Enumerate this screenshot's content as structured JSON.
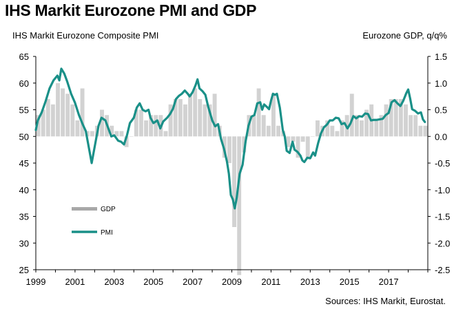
{
  "title": "IHS Markit Eurozone PMI and GDP",
  "source": "Sources: IHS Markit, Eurostat.",
  "colors": {
    "gdp": "#d2d2d2",
    "pmi": "#1a9088",
    "legend_gdp": "#a8a8a8"
  },
  "chart_data": {
    "type": "bar+line",
    "title": "IHS Markit Eurozone PMI and GDP",
    "y_left_label": "IHS Markit Eurozone Composite PMI",
    "y_right_label": "Eurozone GDP, q/q%",
    "y_left_range": [
      25,
      65
    ],
    "y_left_ticks": [
      25,
      30,
      35,
      40,
      45,
      50,
      55,
      60,
      65
    ],
    "y_right_range": [
      -2.5,
      1.5
    ],
    "y_right_ticks": [
      "-2.5",
      "-2.0",
      "-1.5",
      "-1.0",
      "-0.5",
      "0.0",
      "0.5",
      "1.0",
      "1.5"
    ],
    "x_range": [
      1999.0,
      2019.0
    ],
    "x_ticks": [
      "1999",
      "2001",
      "2003",
      "2005",
      "2007",
      "2009",
      "2011",
      "2013",
      "2015",
      "2017"
    ],
    "legend": [
      "GDP",
      "PMI"
    ],
    "series": [
      {
        "name": "GDP",
        "type": "bar",
        "axis": "right",
        "values": [
          0.4,
          0.5,
          0.7,
          0.6,
          1.0,
          0.9,
          0.8,
          0.6,
          0.3,
          0.9,
          0.1,
          0.1,
          0.2,
          0.5,
          0.4,
          0.2,
          0.1,
          0.1,
          -0.2,
          0.0,
          0.5,
          0.5,
          0.3,
          0.4,
          0.4,
          0.4,
          0.1,
          0.6,
          0.7,
          0.7,
          0.6,
          0.8,
          0.9,
          0.7,
          0.6,
          0.6,
          0.8,
          0.2,
          -0.4,
          -0.5,
          -1.7,
          -2.6,
          -0.3,
          0.4,
          0.4,
          0.9,
          0.4,
          0.2,
          0.8,
          0.2,
          0.1,
          -0.2,
          -0.1,
          -0.4,
          -0.1,
          -0.4,
          0.0,
          0.3,
          0.2,
          0.3,
          0.2,
          0.1,
          0.3,
          0.4,
          0.8,
          0.4,
          0.3,
          0.5,
          0.6,
          0.3,
          0.4,
          0.6,
          0.7,
          0.7,
          0.7,
          0.6,
          0.4,
          0.4,
          0.2,
          0.2
        ]
      },
      {
        "name": "PMI",
        "type": "line",
        "axis": "left",
        "points": [
          [
            1999.0,
            51.2
          ],
          [
            1999.1,
            53.0
          ],
          [
            1999.3,
            54.5
          ],
          [
            1999.5,
            56.6
          ],
          [
            1999.7,
            59.0
          ],
          [
            1999.9,
            60.5
          ],
          [
            2000.1,
            61.4
          ],
          [
            2000.2,
            60.5
          ],
          [
            2000.3,
            62.7
          ],
          [
            2000.45,
            61.8
          ],
          [
            2000.6,
            60.3
          ],
          [
            2000.8,
            58.0
          ],
          [
            2001.0,
            56.3
          ],
          [
            2001.2,
            54.0
          ],
          [
            2001.4,
            52.2
          ],
          [
            2001.55,
            51.0
          ],
          [
            2001.75,
            47.0
          ],
          [
            2001.85,
            45.0
          ],
          [
            2002.05,
            49.0
          ],
          [
            2002.2,
            52.0
          ],
          [
            2002.35,
            53.5
          ],
          [
            2002.55,
            53.0
          ],
          [
            2002.7,
            51.5
          ],
          [
            2002.85,
            50.0
          ],
          [
            2003.0,
            50.2
          ],
          [
            2003.2,
            49.2
          ],
          [
            2003.35,
            49.0
          ],
          [
            2003.5,
            48.5
          ],
          [
            2003.65,
            50.2
          ],
          [
            2003.8,
            52.5
          ],
          [
            2004.0,
            53.5
          ],
          [
            2004.15,
            55.4
          ],
          [
            2004.3,
            56.2
          ],
          [
            2004.45,
            55.0
          ],
          [
            2004.6,
            54.7
          ],
          [
            2004.75,
            55.0
          ],
          [
            2004.85,
            53.5
          ],
          [
            2005.0,
            52.5
          ],
          [
            2005.2,
            53.0
          ],
          [
            2005.35,
            51.5
          ],
          [
            2005.5,
            52.8
          ],
          [
            2005.7,
            53.5
          ],
          [
            2005.85,
            54.2
          ],
          [
            2006.0,
            55.2
          ],
          [
            2006.15,
            57.0
          ],
          [
            2006.3,
            57.6
          ],
          [
            2006.45,
            58.0
          ],
          [
            2006.6,
            58.6
          ],
          [
            2006.75,
            58.0
          ],
          [
            2006.85,
            57.5
          ],
          [
            2007.0,
            58.3
          ],
          [
            2007.15,
            59.6
          ],
          [
            2007.25,
            60.7
          ],
          [
            2007.35,
            59.0
          ],
          [
            2007.5,
            58.5
          ],
          [
            2007.65,
            57.8
          ],
          [
            2007.8,
            55.5
          ],
          [
            2008.0,
            53.0
          ],
          [
            2008.15,
            51.9
          ],
          [
            2008.3,
            52.3
          ],
          [
            2008.45,
            49.5
          ],
          [
            2008.6,
            47.7
          ],
          [
            2008.75,
            45.3
          ],
          [
            2008.85,
            43.0
          ],
          [
            2008.95,
            39.0
          ],
          [
            2009.05,
            38.2
          ],
          [
            2009.15,
            36.5
          ],
          [
            2009.25,
            38.5
          ],
          [
            2009.4,
            43.0
          ],
          [
            2009.55,
            44.7
          ],
          [
            2009.7,
            49.0
          ],
          [
            2009.85,
            52.0
          ],
          [
            2010.0,
            53.7
          ],
          [
            2010.15,
            54.0
          ],
          [
            2010.3,
            56.2
          ],
          [
            2010.45,
            56.4
          ],
          [
            2010.55,
            55.0
          ],
          [
            2010.65,
            56.0
          ],
          [
            2010.8,
            55.5
          ],
          [
            2010.9,
            55.1
          ],
          [
            2011.0,
            56.7
          ],
          [
            2011.1,
            58.0
          ],
          [
            2011.2,
            57.8
          ],
          [
            2011.3,
            58.0
          ],
          [
            2011.45,
            55.4
          ],
          [
            2011.6,
            51.2
          ],
          [
            2011.7,
            50.0
          ],
          [
            2011.8,
            47.3
          ],
          [
            2011.95,
            46.9
          ],
          [
            2012.1,
            49.0
          ],
          [
            2012.2,
            47.5
          ],
          [
            2012.35,
            47.1
          ],
          [
            2012.5,
            46.4
          ],
          [
            2012.6,
            45.5
          ],
          [
            2012.7,
            45.2
          ],
          [
            2012.85,
            46.0
          ],
          [
            2013.0,
            45.9
          ],
          [
            2013.15,
            47.0
          ],
          [
            2013.25,
            46.4
          ],
          [
            2013.4,
            48.7
          ],
          [
            2013.55,
            50.6
          ],
          [
            2013.7,
            51.7
          ],
          [
            2013.85,
            52.2
          ],
          [
            2014.0,
            53.0
          ],
          [
            2014.15,
            53.0
          ],
          [
            2014.3,
            53.5
          ],
          [
            2014.45,
            53.4
          ],
          [
            2014.6,
            52.3
          ],
          [
            2014.75,
            52.5
          ],
          [
            2014.9,
            51.5
          ],
          [
            2015.05,
            52.4
          ],
          [
            2015.2,
            53.8
          ],
          [
            2015.35,
            53.4
          ],
          [
            2015.5,
            53.8
          ],
          [
            2015.65,
            53.7
          ],
          [
            2015.8,
            54.3
          ],
          [
            2015.95,
            54.2
          ],
          [
            2016.1,
            53.0
          ],
          [
            2016.25,
            53.1
          ],
          [
            2016.4,
            53.1
          ],
          [
            2016.55,
            53.2
          ],
          [
            2016.7,
            53.3
          ],
          [
            2016.85,
            54.0
          ],
          [
            2017.0,
            54.4
          ],
          [
            2017.15,
            56.4
          ],
          [
            2017.3,
            56.8
          ],
          [
            2017.45,
            56.2
          ],
          [
            2017.6,
            55.7
          ],
          [
            2017.75,
            56.7
          ],
          [
            2017.9,
            58.1
          ],
          [
            2018.0,
            58.8
          ],
          [
            2018.1,
            57.1
          ],
          [
            2018.2,
            55.1
          ],
          [
            2018.35,
            54.8
          ],
          [
            2018.5,
            54.3
          ],
          [
            2018.65,
            54.5
          ],
          [
            2018.75,
            53.2
          ],
          [
            2018.85,
            52.7
          ]
        ]
      }
    ]
  }
}
